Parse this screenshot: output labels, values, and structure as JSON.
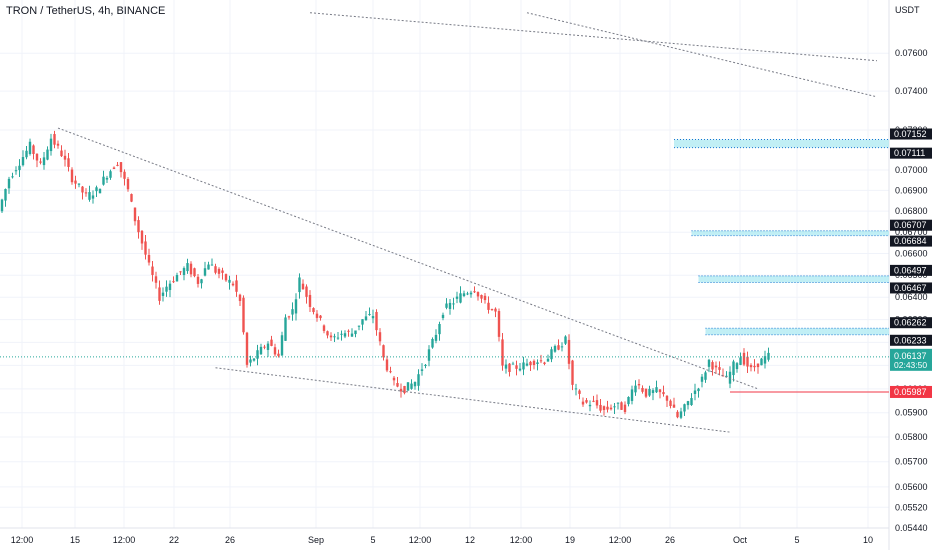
{
  "header": {
    "symbol_label": "TRON / TetherUS, 4h, BINANCE",
    "currency": "USDT"
  },
  "colors": {
    "up": "#26a69a",
    "down": "#ef5350",
    "zone": "#b2ebf2",
    "zone_border": "#1976d2",
    "trendline": "#787b86",
    "last_price_bg": "#26a69a",
    "stop_line": "#f23645",
    "badge_dark": "#131722"
  },
  "chart_data": {
    "type": "candlestick",
    "y_axis": {
      "min": 0.0544,
      "max": 0.0778,
      "scale": "log",
      "ticks": [
        "0.07600",
        "0.07400",
        "0.07200",
        "0.07000",
        "0.06900",
        "0.06800",
        "0.06700",
        "0.06600",
        "0.06500",
        "0.06400",
        "0.06300",
        "0.06200",
        "0.06100",
        "0.06000",
        "0.05900",
        "0.05800",
        "0.05700",
        "0.05600",
        "0.05520",
        "0.05440"
      ]
    },
    "x_axis": {
      "tick_labels": [
        "12:00",
        "15",
        "12:00",
        "22",
        "26",
        "Sep",
        "5",
        "12:00",
        "12",
        "12:00",
        "19",
        "12:00",
        "26",
        "Oct",
        "5",
        "10"
      ]
    },
    "price_path": [
      [
        0,
        0.068
      ],
      [
        3,
        0.0696
      ],
      [
        6,
        0.0704
      ],
      [
        9,
        0.0712
      ],
      [
        12,
        0.0702
      ],
      [
        15,
        0.0716
      ],
      [
        18,
        0.0708
      ],
      [
        21,
        0.0696
      ],
      [
        25,
        0.0687
      ],
      [
        28,
        0.069
      ],
      [
        31,
        0.0698
      ],
      [
        34,
        0.0704
      ],
      [
        37,
        0.069
      ],
      [
        39,
        0.0676
      ],
      [
        43,
        0.0654
      ],
      [
        46,
        0.064
      ],
      [
        48,
        0.0645
      ],
      [
        51,
        0.065
      ],
      [
        54,
        0.0654
      ],
      [
        57,
        0.0647
      ],
      [
        60,
        0.0656
      ],
      [
        62,
        0.0652
      ],
      [
        65,
        0.0648
      ],
      [
        67,
        0.0646
      ],
      [
        69,
        0.0638
      ],
      [
        71,
        0.061
      ],
      [
        74,
        0.0615
      ],
      [
        77,
        0.062
      ],
      [
        80,
        0.0614
      ],
      [
        82,
        0.0631
      ],
      [
        84,
        0.0634
      ],
      [
        86,
        0.0648
      ],
      [
        89,
        0.0637
      ],
      [
        92,
        0.0629
      ],
      [
        95,
        0.0621
      ],
      [
        98,
        0.0624
      ],
      [
        101,
        0.0624
      ],
      [
        104,
        0.063
      ],
      [
        107,
        0.0632
      ],
      [
        110,
        0.0613
      ],
      [
        113,
        0.0602
      ],
      [
        116,
        0.06
      ],
      [
        119,
        0.0603
      ],
      [
        122,
        0.0612
      ],
      [
        125,
        0.0624
      ],
      [
        127,
        0.0634
      ],
      [
        130,
        0.0638
      ],
      [
        133,
        0.0642
      ],
      [
        136,
        0.0644
      ],
      [
        139,
        0.0637
      ],
      [
        142,
        0.0633
      ],
      [
        144,
        0.0609
      ],
      [
        147,
        0.0609
      ],
      [
        150,
        0.061
      ],
      [
        153,
        0.0612
      ],
      [
        156,
        0.0612
      ],
      [
        159,
        0.0617
      ],
      [
        162,
        0.0621
      ],
      [
        164,
        0.0601
      ],
      [
        167,
        0.0594
      ],
      [
        170,
        0.0594
      ],
      [
        173,
        0.0591
      ],
      [
        176,
        0.0593
      ],
      [
        179,
        0.0592
      ],
      [
        182,
        0.0603
      ],
      [
        185,
        0.0598
      ],
      [
        188,
        0.0599
      ],
      [
        191,
        0.0596
      ],
      [
        194,
        0.0588
      ],
      [
        196,
        0.0592
      ],
      [
        198,
        0.0597
      ],
      [
        201,
        0.0604
      ],
      [
        203,
        0.0612
      ],
      [
        205,
        0.0608
      ],
      [
        208,
        0.0604
      ],
      [
        210,
        0.061
      ],
      [
        212,
        0.0614
      ],
      [
        215,
        0.0608
      ],
      [
        217,
        0.0611
      ],
      [
        220,
        0.0614
      ]
    ],
    "trendlines": [
      {
        "from": [
          16,
          0.0721
        ],
        "to": [
          216,
          0.06
        ]
      },
      {
        "from": [
          61,
          0.0609
        ],
        "to": [
          208,
          0.0582
        ]
      },
      {
        "from": [
          88,
          0.0782
        ],
        "to": [
          250,
          0.0756
        ]
      },
      {
        "from": [
          150,
          0.0782
        ],
        "to": [
          250,
          0.0737
        ]
      }
    ],
    "zones": [
      {
        "top": 0.07152,
        "bottom": 0.07111,
        "start": 192
      },
      {
        "top": 0.06707,
        "bottom": 0.06684,
        "start": 197
      },
      {
        "top": 0.06497,
        "bottom": 0.06467,
        "start": 199
      },
      {
        "top": 0.06262,
        "bottom": 0.06233,
        "start": 201
      }
    ],
    "price_labels": [
      "0.07152",
      "0.07111",
      "0.06707",
      "0.06684",
      "0.06497",
      "0.06467",
      "0.06262",
      "0.06233"
    ],
    "last_price": {
      "value": "0.06137",
      "countdown": "02:43:50"
    },
    "stop_level": {
      "value": "0.05987",
      "start": 208
    }
  }
}
